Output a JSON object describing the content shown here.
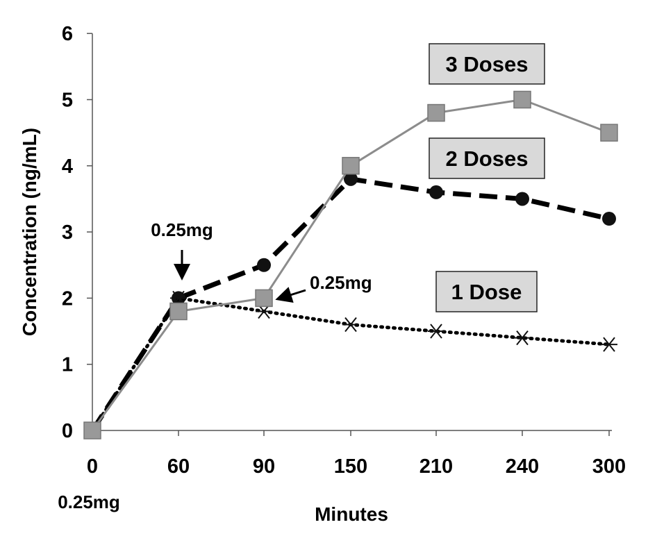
{
  "chart_data": {
    "type": "line",
    "title": "",
    "xlabel": "Minutes",
    "ylabel": "Concentration (ng/mL)",
    "categories": [
      "0",
      "60",
      "90",
      "150",
      "210",
      "240",
      "300"
    ],
    "ylim": [
      0,
      6
    ],
    "yticks": [
      "0",
      "1",
      "2",
      "3",
      "4",
      "5",
      "6"
    ],
    "grid": false,
    "series": [
      {
        "name": "1 Dose",
        "style": "dotted",
        "marker": "asterisk",
        "color": "#000000",
        "values": [
          0,
          2.0,
          1.8,
          1.6,
          1.5,
          1.4,
          1.3
        ]
      },
      {
        "name": "2 Doses",
        "style": "dashed",
        "marker": "circle",
        "color": "#000000",
        "values": [
          0,
          2.0,
          2.5,
          3.8,
          3.6,
          3.5,
          3.2
        ]
      },
      {
        "name": "3 Doses",
        "style": "solid",
        "marker": "square",
        "color": "#8c8c8c",
        "values": [
          0,
          1.8,
          2.0,
          4.0,
          4.8,
          5.0,
          4.5
        ]
      }
    ],
    "annotations": [
      {
        "text": "0.25mg",
        "target": "x=0"
      },
      {
        "text": "0.25mg",
        "target": "x=60"
      },
      {
        "text": "0.25mg",
        "target": "x=90"
      }
    ]
  }
}
